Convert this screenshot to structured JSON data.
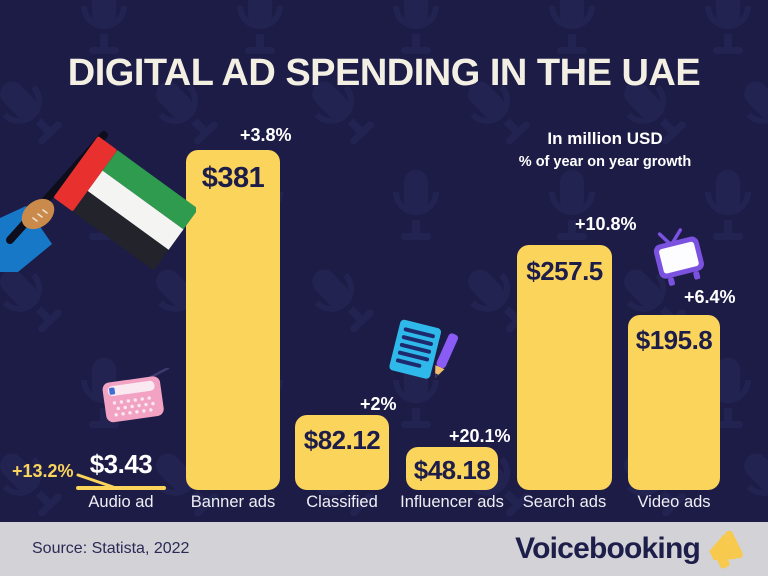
{
  "title": "DIGITAL AD SPENDING IN THE UAE",
  "legend": {
    "line1": "In million USD",
    "line2": "% of year on year growth"
  },
  "chart_data": {
    "type": "bar",
    "title": "Digital ad spending in the UAE",
    "unit": "million USD",
    "categories": [
      "Audio ad",
      "Banner ads",
      "Classified",
      "Influencer ads",
      "Search ads",
      "Video ads"
    ],
    "values": [
      3.43,
      381,
      82.12,
      48.18,
      257.5,
      195.8
    ],
    "value_labels": [
      "$3.43",
      "$381",
      "$82.12",
      "$48.18",
      "$257.5",
      "$195.8"
    ],
    "yoy_growth_percent": [
      13.2,
      3.8,
      2,
      20.1,
      10.8,
      6.4
    ],
    "growth_labels": [
      "+13.2%",
      "+3.8%",
      "+2%",
      "+20.1%",
      "+10.8%",
      "+6.4%"
    ],
    "bar_color": "#FBD45C",
    "ylim": [
      0,
      400
    ],
    "grid": false,
    "legend_position": "top-right"
  },
  "footer": {
    "source": "Source: Statista, 2022",
    "brand": "Voicebooking"
  },
  "icons": {
    "background": "microphone-pattern",
    "flag": "uae-flag",
    "radio": "radio",
    "notepad": "notepad-pencil",
    "tv": "television",
    "megaphone": "megaphone"
  },
  "colors": {
    "background": "#1C1C47",
    "bar": "#FBD45C",
    "title": "#F3EFE3",
    "growth_text": "#FFFFFF",
    "footer_bg": "#D2D2D7",
    "brand_navy": "#1E1E4A"
  }
}
